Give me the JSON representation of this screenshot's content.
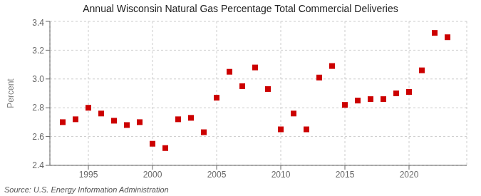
{
  "chart_data": {
    "type": "scatter",
    "title": "Annual Wisconsin Natural Gas Percentage Total Commercial Deliveries",
    "ylabel": "Percent",
    "annotations": [
      "Source: U.S. Energy Information Administration"
    ],
    "x": [
      1993,
      1994,
      1995,
      1996,
      1997,
      1998,
      1999,
      2000,
      2001,
      2002,
      2003,
      2004,
      2005,
      2006,
      2007,
      2008,
      2009,
      2010,
      2011,
      2012,
      2013,
      2014,
      2015,
      2016,
      2017,
      2018,
      2019,
      2020,
      2021,
      2022,
      2023
    ],
    "values": [
      2.7,
      2.72,
      2.8,
      2.76,
      2.71,
      2.68,
      2.7,
      2.55,
      2.52,
      2.72,
      2.73,
      2.63,
      2.87,
      3.05,
      2.95,
      3.08,
      2.93,
      2.65,
      2.76,
      2.65,
      3.01,
      3.09,
      2.82,
      2.85,
      2.86,
      2.86,
      2.9,
      2.91,
      3.06,
      3.32,
      3.29
    ],
    "color": "#cc0000",
    "marker": "square",
    "xlim": [
      1992,
      2024.5
    ],
    "xticks": [
      1995,
      2000,
      2005,
      2010,
      2015,
      2020
    ],
    "ylim": [
      2.4,
      3.4
    ],
    "yticks": [
      2.4,
      2.6,
      2.8,
      {
        "value": 3.0,
        "label": "3.0"
      },
      3.2,
      3.4
    ],
    "grid": true
  }
}
